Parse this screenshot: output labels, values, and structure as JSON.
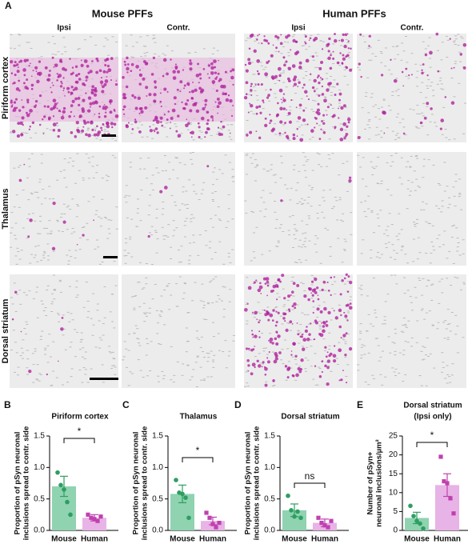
{
  "panel_a": {
    "label": "A",
    "groups": [
      "Mouse PFFs",
      "Human PFFs"
    ],
    "columns": [
      "Ipsi",
      "Contr.",
      "Ipsi",
      "Contr."
    ],
    "rows": [
      "Piriform cortex",
      "Thalamus",
      "Dorsal striatum"
    ]
  },
  "chart_data": [
    {
      "type": "bar",
      "label": "B",
      "title": [
        "Piriform cortex"
      ],
      "ylabel": [
        "Proportion of pSyn neuronal",
        "inclusions spread to contr. side"
      ],
      "categories": [
        "Mouse",
        "Human"
      ],
      "values": [
        0.7,
        0.2
      ],
      "errors": [
        0.16,
        0.05
      ],
      "points": [
        [
          0.92,
          0.72,
          0.65,
          0.45,
          0.25
        ],
        [
          0.25,
          0.2,
          0.18,
          0.15,
          0.22
        ]
      ],
      "colors": [
        "#8fd3b0",
        "#e8b3e6"
      ],
      "point_colors": [
        "#2e9e62",
        "#c040b0"
      ],
      "ylim": [
        0,
        1.5
      ],
      "yticks": [
        {
          "value": 0,
          "label": "0.0"
        },
        0.5,
        {
          "value": 1,
          "label": "1.0"
        },
        1.5
      ],
      "annotation": "*"
    },
    {
      "type": "bar",
      "label": "C",
      "title": [
        "Thalamus"
      ],
      "ylabel": [
        "Proportion of pSyn neuronal",
        "inclusions spread to contr. side"
      ],
      "categories": [
        "Mouse",
        "Human"
      ],
      "values": [
        0.58,
        0.15
      ],
      "errors": [
        0.14,
        0.06
      ],
      "points": [
        [
          0.8,
          0.6,
          0.58,
          0.52,
          0.2
        ],
        [
          0.28,
          0.2,
          0.1,
          0.05,
          0.12
        ]
      ],
      "colors": [
        "#8fd3b0",
        "#e8b3e6"
      ],
      "point_colors": [
        "#2e9e62",
        "#c040b0"
      ],
      "ylim": [
        0,
        1.5
      ],
      "yticks": [
        {
          "value": 0,
          "label": "0.0"
        },
        0.5,
        {
          "value": 1,
          "label": "1.0"
        },
        1.5
      ],
      "annotation": "*"
    },
    {
      "type": "bar",
      "label": "D",
      "title": [
        "Dorsal striatum"
      ],
      "ylabel": [
        "Proportion of pSyn neuronal",
        "inclusions spread to contr. side"
      ],
      "categories": [
        "Mouse",
        "Human"
      ],
      "values": [
        0.32,
        0.12
      ],
      "errors": [
        0.1,
        0.06
      ],
      "points": [
        [
          0.55,
          0.32,
          0.22,
          0.3,
          0.2
        ],
        [
          0.2,
          0.12,
          0.08,
          0.05,
          0.15
        ]
      ],
      "colors": [
        "#8fd3b0",
        "#e8b3e6"
      ],
      "point_colors": [
        "#2e9e62",
        "#c040b0"
      ],
      "ylim": [
        0,
        1.5
      ],
      "yticks": [
        {
          "value": 0,
          "label": "0.0"
        },
        0.5,
        {
          "value": 1,
          "label": "1.0"
        },
        1.5
      ],
      "annotation": "ns"
    },
    {
      "type": "bar",
      "label": "E",
      "title": [
        "Dorsal striatum",
        "(Ipsi only)"
      ],
      "ylabel": [
        "Number of pSyn+",
        "neuronal inclusions/µm²"
      ],
      "categories": [
        "Mouse",
        "Human"
      ],
      "values": [
        3.3,
        12
      ],
      "errors": [
        1.5,
        3
      ],
      "points": [
        [
          6.5,
          3.8,
          2.5,
          1.8,
          0.5
        ],
        [
          19.5,
          13,
          12.5,
          8.5,
          4.5
        ]
      ],
      "colors": [
        "#8fd3b0",
        "#e8b3e6"
      ],
      "point_colors": [
        "#2e9e62",
        "#c040b0"
      ],
      "ylim": [
        0,
        25
      ],
      "yticks": [
        0,
        5,
        10,
        15,
        20,
        25
      ],
      "annotation": "*"
    }
  ]
}
